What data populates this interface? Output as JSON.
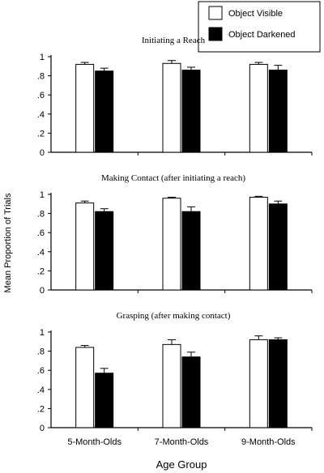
{
  "figure": {
    "ylabel": "Mean Proportion of Trials",
    "xlabel": "Age Group",
    "legend": [
      {
        "name": "Object Visible",
        "color": "#ffffff"
      },
      {
        "name": "Object Darkened",
        "color": "#000000"
      }
    ],
    "yticks": [
      "0",
      ".2",
      ".4",
      ".6",
      ".8",
      "1"
    ],
    "categories": [
      "5-Month-Olds",
      "7-Month-Olds",
      "9-Month-Olds"
    ]
  },
  "chart_data": [
    {
      "type": "bar",
      "title": "Initiating a Reach",
      "categories": [
        "5-Month-Olds",
        "7-Month-Olds",
        "9-Month-Olds"
      ],
      "ylim": [
        0,
        1
      ],
      "series": [
        {
          "name": "Object Visible",
          "values": [
            0.92,
            0.93,
            0.92
          ],
          "errors": [
            0.02,
            0.03,
            0.02
          ]
        },
        {
          "name": "Object Darkened",
          "values": [
            0.85,
            0.86,
            0.86
          ],
          "errors": [
            0.03,
            0.03,
            0.05
          ]
        }
      ]
    },
    {
      "type": "bar",
      "title": "Making Contact (after initiating a reach)",
      "categories": [
        "5-Month-Olds",
        "7-Month-Olds",
        "9-Month-Olds"
      ],
      "ylim": [
        0,
        1
      ],
      "series": [
        {
          "name": "Object Visible",
          "values": [
            0.91,
            0.96,
            0.97
          ],
          "errors": [
            0.02,
            0.01,
            0.01
          ]
        },
        {
          "name": "Object Darkened",
          "values": [
            0.82,
            0.82,
            0.9
          ],
          "errors": [
            0.03,
            0.05,
            0.03
          ]
        }
      ]
    },
    {
      "type": "bar",
      "title": "Grasping (after making contact)",
      "categories": [
        "5-Month-Olds",
        "7-Month-Olds",
        "9-Month-Olds"
      ],
      "ylim": [
        0,
        1
      ],
      "series": [
        {
          "name": "Object Visible",
          "values": [
            0.84,
            0.87,
            0.92
          ],
          "errors": [
            0.02,
            0.05,
            0.04
          ]
        },
        {
          "name": "Object Darkened",
          "values": [
            0.57,
            0.74,
            0.92
          ],
          "errors": [
            0.05,
            0.05,
            0.02
          ]
        }
      ]
    }
  ]
}
